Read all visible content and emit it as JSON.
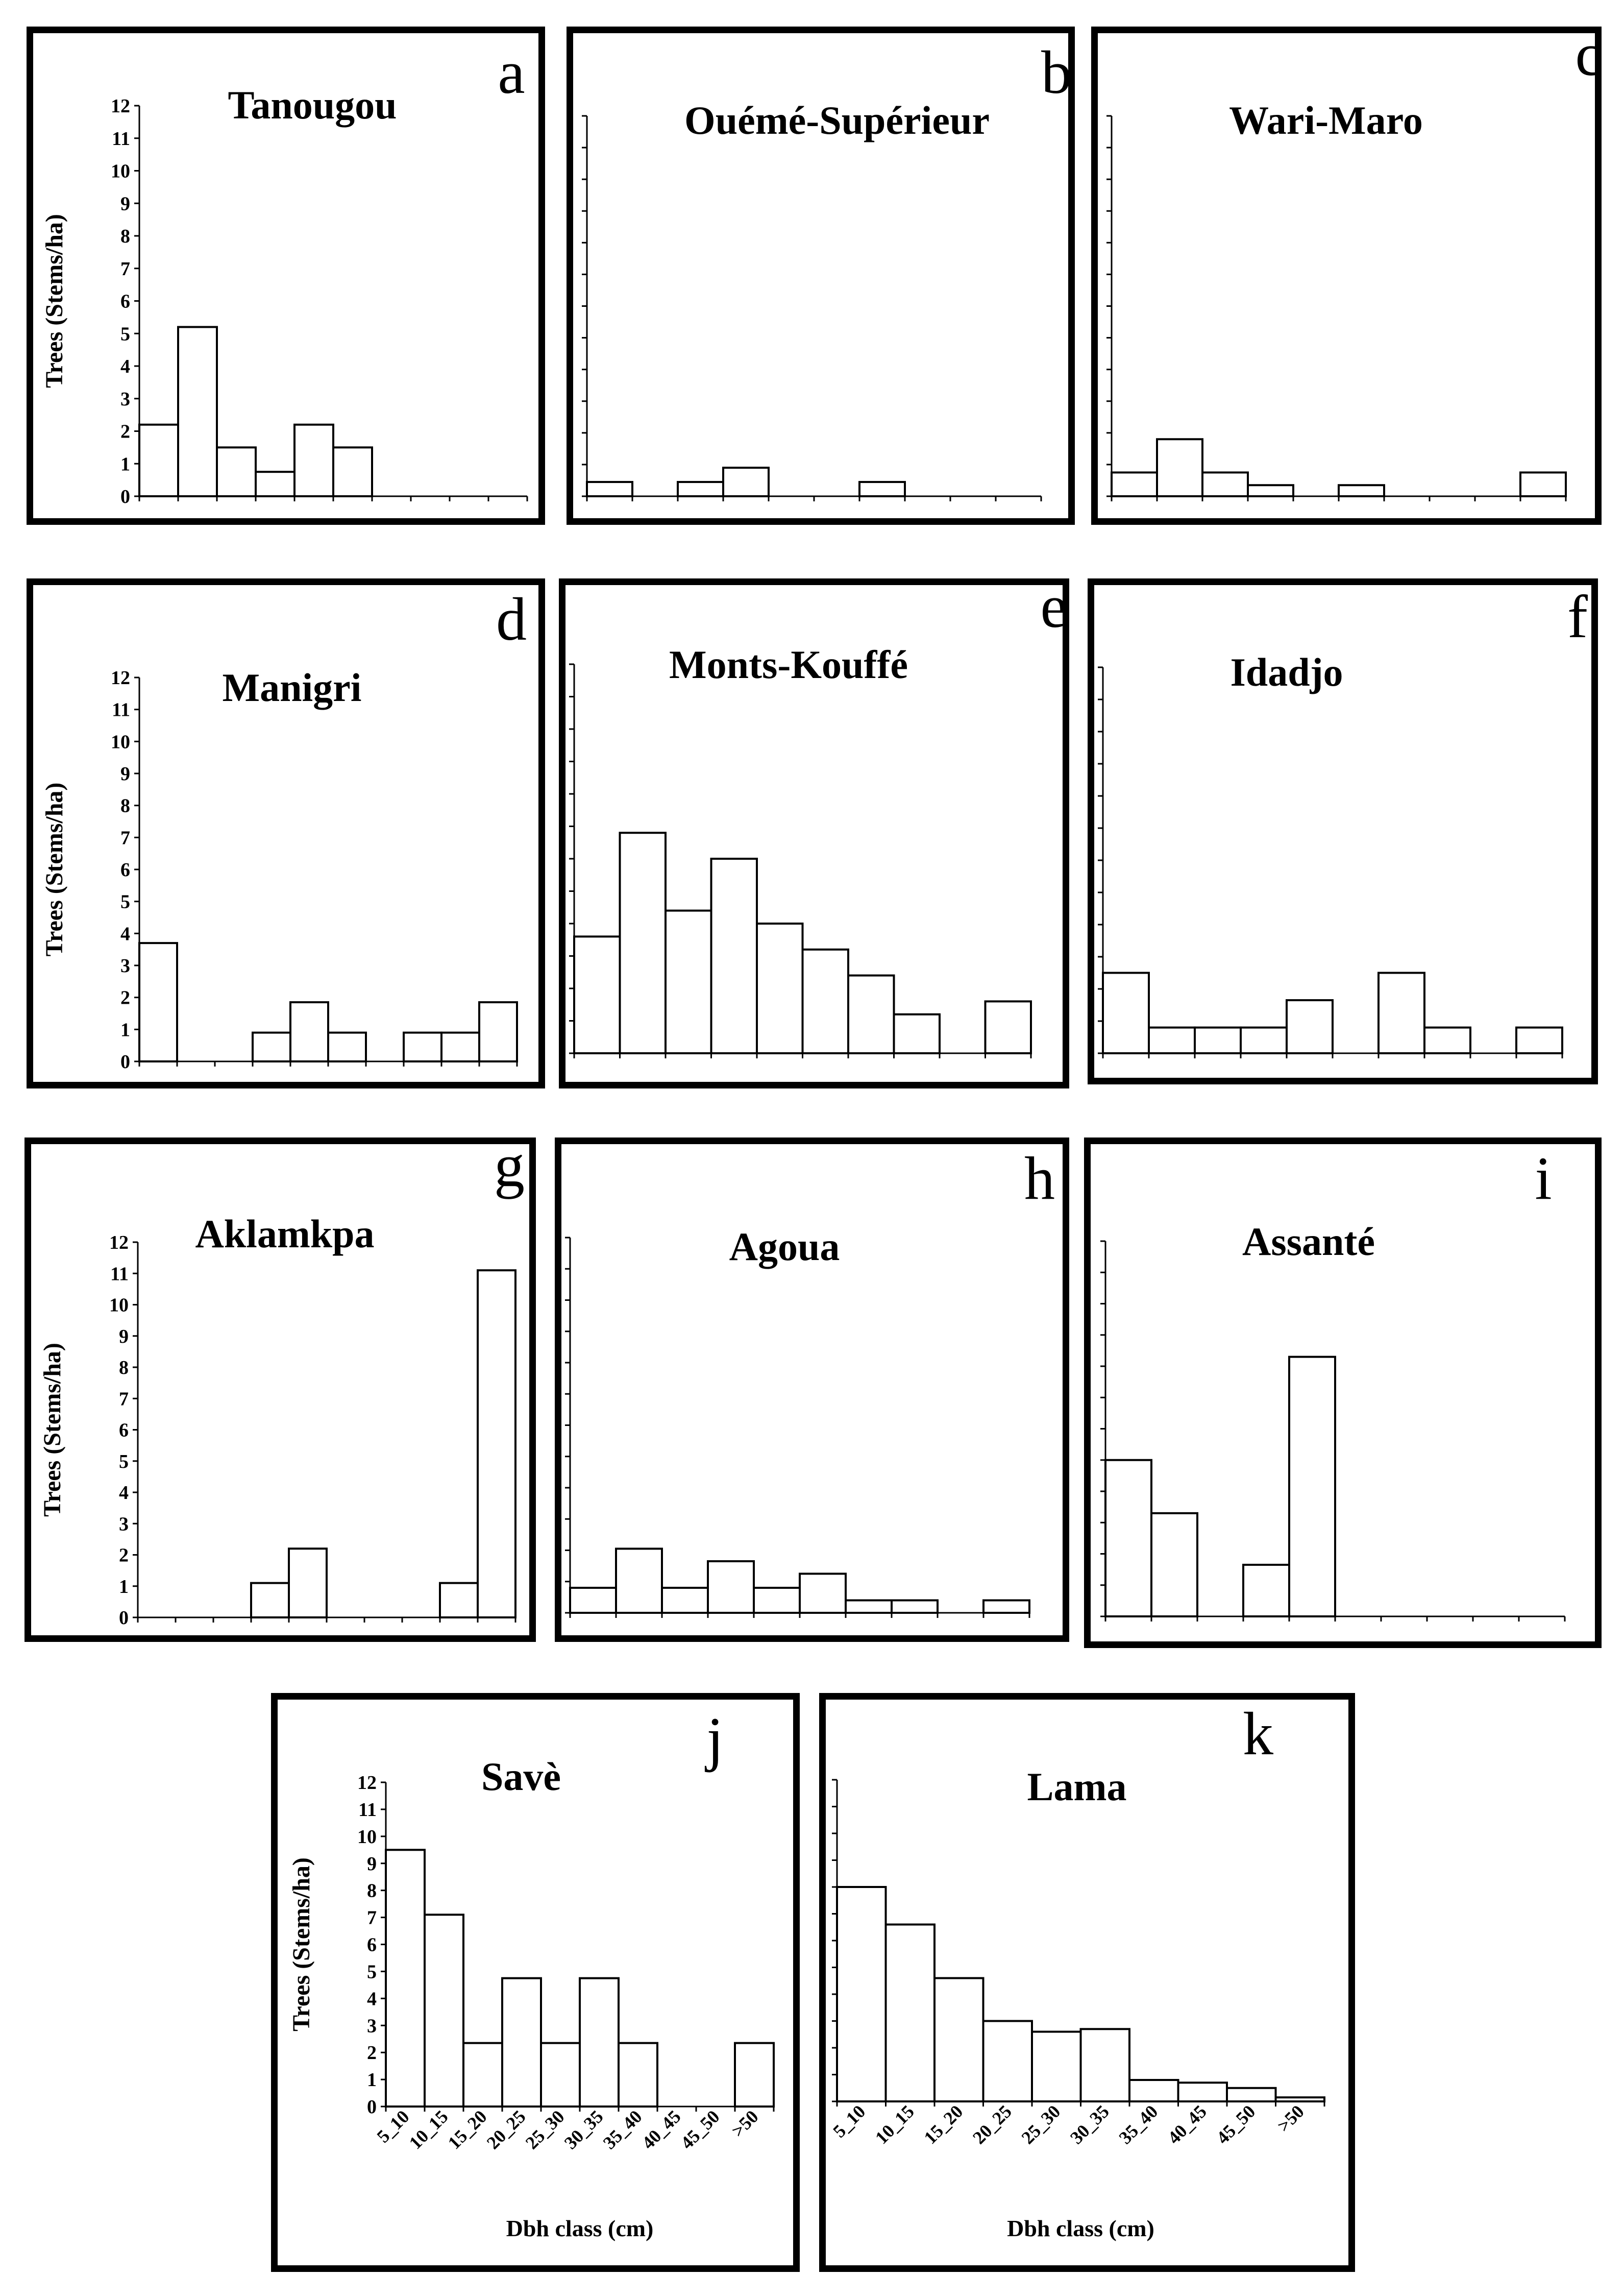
{
  "figure": {
    "ylabel": "Trees (Stems/ha)",
    "xlabel": "Dbh class (cm)"
  },
  "chart_data": [
    {
      "id": "a",
      "letter": "a",
      "title": "Tanougou",
      "type": "bar",
      "categories": [
        "5_10",
        "10_15",
        "15_20",
        "20_25",
        "25_30",
        "30_35",
        "35_40",
        "40_45",
        "45_50",
        ">50"
      ],
      "values": [
        2.2,
        5.2,
        1.5,
        0.75,
        2.2,
        1.5,
        0,
        0,
        0,
        0
      ],
      "ylim": [
        0,
        12
      ],
      "yticks": [
        "0",
        "1",
        "2",
        "3",
        "4",
        "5",
        "6",
        "7",
        "8",
        "9",
        "10",
        "11",
        "12"
      ],
      "ylabel": "Trees (Stems/ha)"
    },
    {
      "id": "b",
      "letter": "b",
      "title": "Ouémé-Supérieur",
      "type": "bar",
      "categories": [
        "5_10",
        "10_15",
        "15_20",
        "20_25",
        "25_30",
        "30_35",
        "35_40",
        "40_45",
        "45_50",
        ">50"
      ],
      "values": [
        0.45,
        0,
        0.45,
        0.9,
        0,
        0,
        0.45,
        0,
        0,
        0
      ],
      "ylim": [
        0,
        12
      ]
    },
    {
      "id": "c",
      "letter": "c",
      "title": "Wari-Maro",
      "type": "bar",
      "categories": [
        "5_10",
        "10_15",
        "15_20",
        "20_25",
        "25_30",
        "30_35",
        "35_40",
        "40_45",
        "45_50",
        ">50"
      ],
      "values": [
        0.75,
        1.8,
        0.75,
        0.35,
        0,
        0.35,
        0,
        0,
        0,
        0.75
      ],
      "ylim": [
        0,
        12
      ]
    },
    {
      "id": "d",
      "letter": "d",
      "title": "Manigri",
      "type": "bar",
      "categories": [
        "5_10",
        "10_15",
        "15_20",
        "20_25",
        "25_30",
        "30_35",
        "35_40",
        "40_45",
        "45_50",
        ">50"
      ],
      "values": [
        3.7,
        0,
        0,
        0.9,
        1.85,
        0.9,
        0,
        0.9,
        0.9,
        1.85
      ],
      "ylim": [
        0,
        12
      ],
      "yticks": [
        "0",
        "1",
        "2",
        "3",
        "4",
        "5",
        "6",
        "7",
        "8",
        "9",
        "10",
        "11",
        "12"
      ],
      "ylabel": "Trees (Stems/ha)"
    },
    {
      "id": "e",
      "letter": "e",
      "title": "Monts-Kouffé",
      "type": "bar",
      "categories": [
        "5_10",
        "10_15",
        "15_20",
        "20_25",
        "25_30",
        "30_35",
        "35_40",
        "40_45",
        "45_50",
        ">50"
      ],
      "values": [
        3.6,
        6.8,
        4.4,
        6.0,
        4.0,
        3.2,
        2.4,
        1.2,
        0,
        1.6
      ],
      "ylim": [
        0,
        12
      ]
    },
    {
      "id": "f",
      "letter": "f",
      "title": "Idadjo",
      "type": "bar",
      "categories": [
        "5_10",
        "10_15",
        "15_20",
        "20_25",
        "25_30",
        "30_35",
        "35_40",
        "40_45",
        "45_50",
        ">50"
      ],
      "values": [
        2.5,
        0.8,
        0.8,
        0.8,
        1.65,
        0,
        2.5,
        0.8,
        0,
        0.8
      ],
      "ylim": [
        0,
        12
      ]
    },
    {
      "id": "g",
      "letter": "g",
      "title": "Aklamkpa",
      "type": "bar",
      "categories": [
        "5_10",
        "10_15",
        "15_20",
        "20_25",
        "25_30",
        "30_35",
        "35_40",
        "40_45",
        "45_50",
        ">50"
      ],
      "values": [
        0,
        0,
        0,
        1.1,
        2.2,
        0,
        0,
        0,
        1.1,
        11.1
      ],
      "ylim": [
        0,
        12
      ],
      "yticks": [
        "0",
        "1",
        "2",
        "3",
        "4",
        "5",
        "6",
        "7",
        "8",
        "9",
        "10",
        "11",
        "12"
      ],
      "ylabel": "Trees (Stems/ha)"
    },
    {
      "id": "h",
      "letter": "h",
      "title": "Agoua",
      "type": "bar",
      "categories": [
        "5_10",
        "10_15",
        "15_20",
        "20_25",
        "25_30",
        "30_35",
        "35_40",
        "40_45",
        "45_50",
        ">50"
      ],
      "values": [
        0.8,
        2.05,
        0.8,
        1.65,
        0.8,
        1.25,
        0.4,
        0.4,
        0,
        0.4
      ],
      "ylim": [
        0,
        12
      ]
    },
    {
      "id": "i",
      "letter": "i",
      "title": "Assanté",
      "type": "bar",
      "categories": [
        "5_10",
        "10_15",
        "15_20",
        "20_25",
        "25_30",
        "30_35",
        "35_40",
        "40_45",
        "45_50",
        ">50"
      ],
      "values": [
        5.0,
        3.3,
        0,
        1.65,
        8.3,
        0,
        0,
        0,
        0,
        0
      ],
      "ylim": [
        0,
        12
      ]
    },
    {
      "id": "j",
      "letter": "j",
      "title": "Savè",
      "type": "bar",
      "categories": [
        "5_10",
        "10_15",
        "15_20",
        "20_25",
        "25_30",
        "30_35",
        "35_40",
        "40_45",
        "45_50",
        ">50"
      ],
      "values": [
        9.5,
        7.1,
        2.35,
        4.75,
        2.35,
        4.75,
        2.35,
        0,
        0,
        2.35
      ],
      "ylim": [
        0,
        12
      ],
      "yticks": [
        "0",
        "1",
        "2",
        "3",
        "4",
        "5",
        "6",
        "7",
        "8",
        "9",
        "10",
        "11",
        "12"
      ],
      "ylabel": "Trees (Stems/ha)",
      "xlabel": "Dbh class (cm)"
    },
    {
      "id": "k",
      "letter": "k",
      "title": "Lama",
      "type": "bar",
      "categories": [
        "5_10",
        "10_15",
        "15_20",
        "20_25",
        "25_30",
        "30_35",
        "35_40",
        "40_45",
        "45_50",
        ">50"
      ],
      "values": [
        8.0,
        6.6,
        4.6,
        3.0,
        2.6,
        2.7,
        0.8,
        0.7,
        0.5,
        0.15
      ],
      "ylim": [
        0,
        12
      ],
      "xlabel": "Dbh class (cm)"
    }
  ]
}
